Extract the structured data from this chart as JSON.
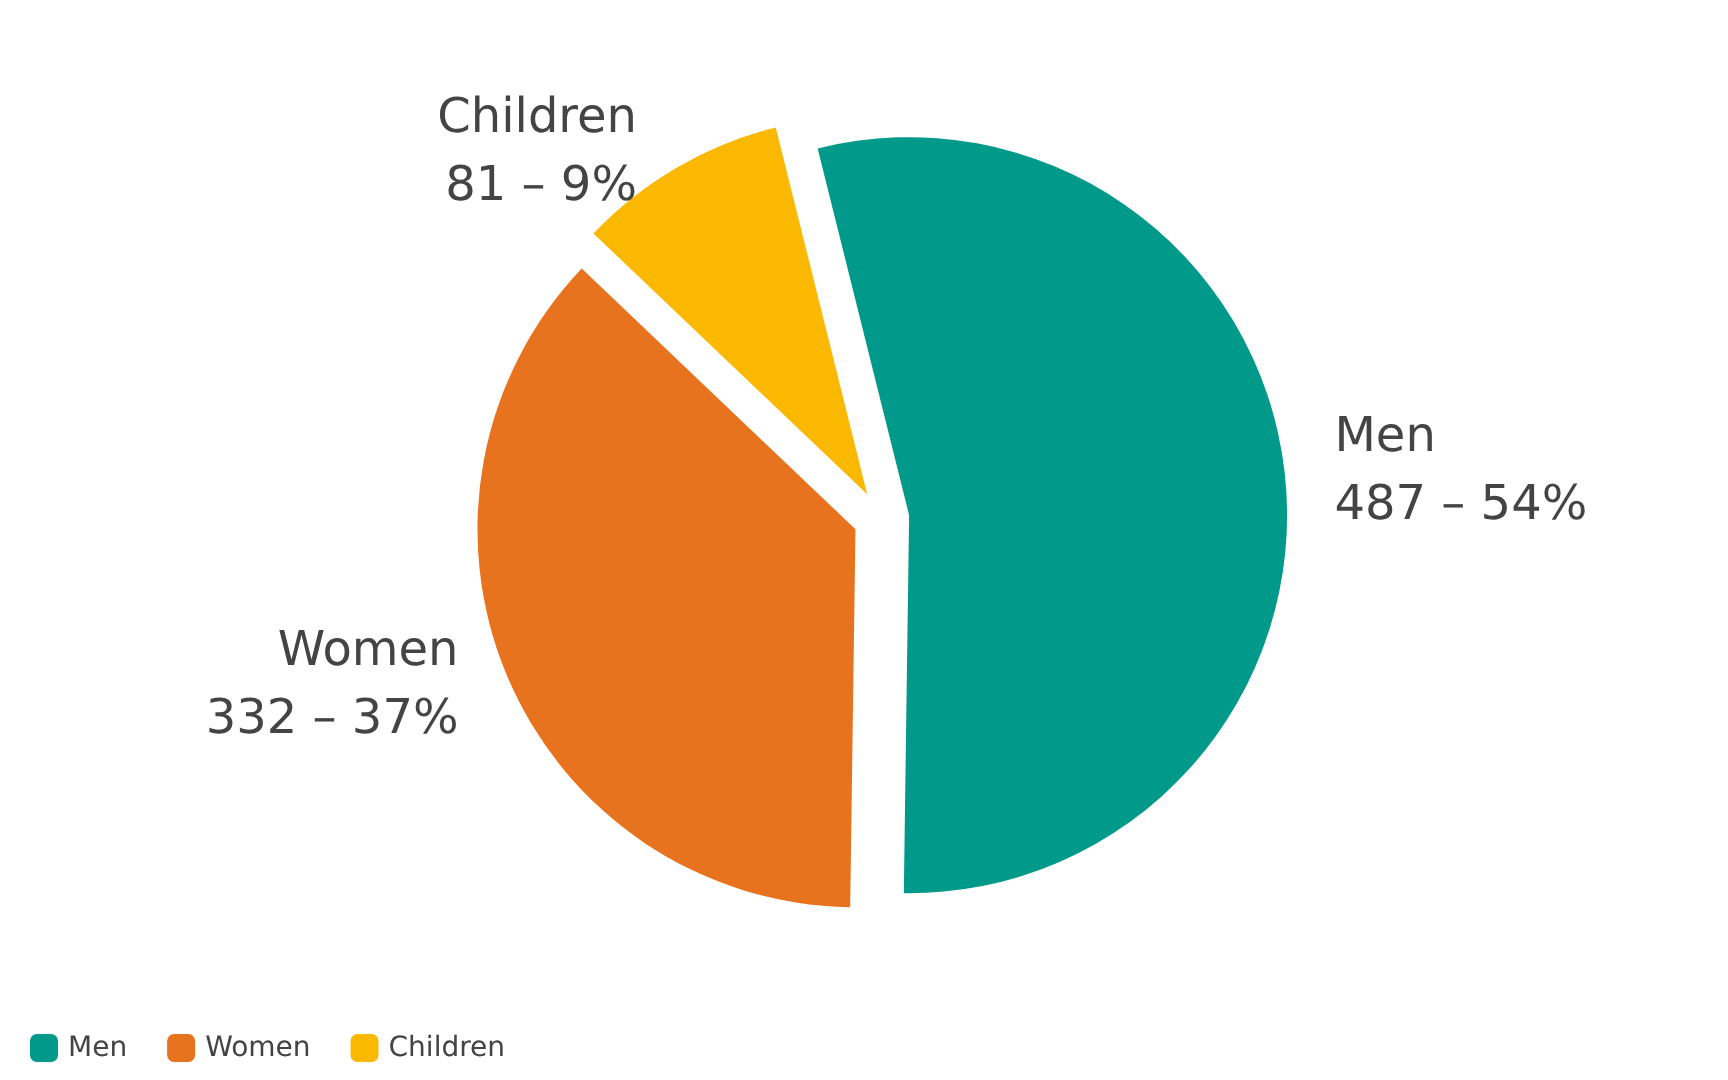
{
  "chart_data": {
    "type": "pie",
    "categories": [
      "Men",
      "Women",
      "Children"
    ],
    "values": [
      487,
      332,
      81
    ],
    "value_labels": [
      "487 – 54%",
      "332 – 37%",
      "81 – 9%"
    ],
    "colors": [
      "#00998a",
      "#e8731e",
      "#fbb800"
    ],
    "legend": "bottom left"
  }
}
